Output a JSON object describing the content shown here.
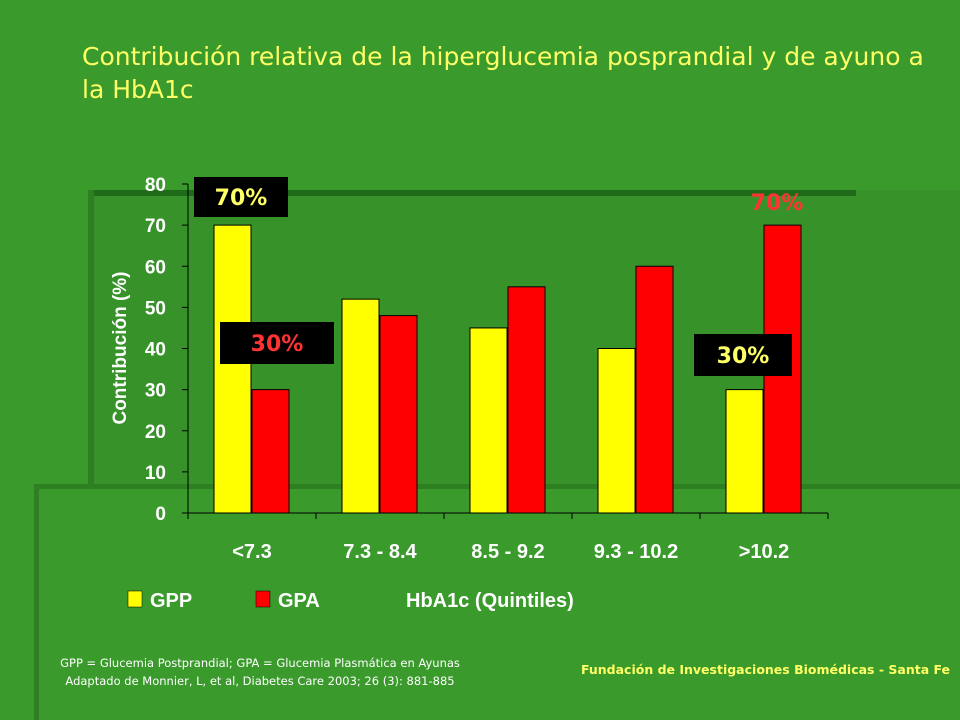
{
  "title": "Contribución relativa de la hiperglucemia posprandial y de ayuno a la HbA1c",
  "footnote": {
    "line1": "GPP = Glucemia Postprandial; GPA = Glucemia Plasmática en Ayunas",
    "line2": "Adaptado de Monnier, L, et al, Diabetes Care 2003; 26 (3): 881-885"
  },
  "credit": "Fundación de Investigaciones Biomédicas - Santa Fe",
  "colors": {
    "background": "#3a9a2c",
    "gpp": "#ffff00",
    "gpa": "#ff0000",
    "title": "#ffff66",
    "callout_bg": "#000000"
  },
  "chart_data": {
    "type": "bar",
    "categories": [
      "<7.3",
      "7.3 - 8.4",
      "8.5 - 9.2",
      "9.3 - 10.2",
      ">10.2"
    ],
    "series": [
      {
        "name": "GPP",
        "values": [
          70,
          52,
          45,
          40,
          30
        ],
        "color": "#ffff00"
      },
      {
        "name": "GPA",
        "values": [
          30,
          48,
          55,
          60,
          70
        ],
        "color": "#ff0000"
      }
    ],
    "ylabel": "Contribución (%)",
    "xlabel": "HbA1c (Quintiles)",
    "ylim": [
      0,
      80
    ],
    "yticks": [
      0,
      10,
      20,
      30,
      40,
      50,
      60,
      70,
      80
    ],
    "legend_position": "bottom-left",
    "grid": false,
    "annotations": [
      {
        "text": "70%",
        "text_color": "#ffff66",
        "boxed": true
      },
      {
        "text": "30%",
        "text_color": "#ff3333",
        "boxed": true
      },
      {
        "text": "70%",
        "text_color": "#ff3333",
        "boxed": false
      },
      {
        "text": "30%",
        "text_color": "#ffff66",
        "boxed": true
      }
    ]
  }
}
